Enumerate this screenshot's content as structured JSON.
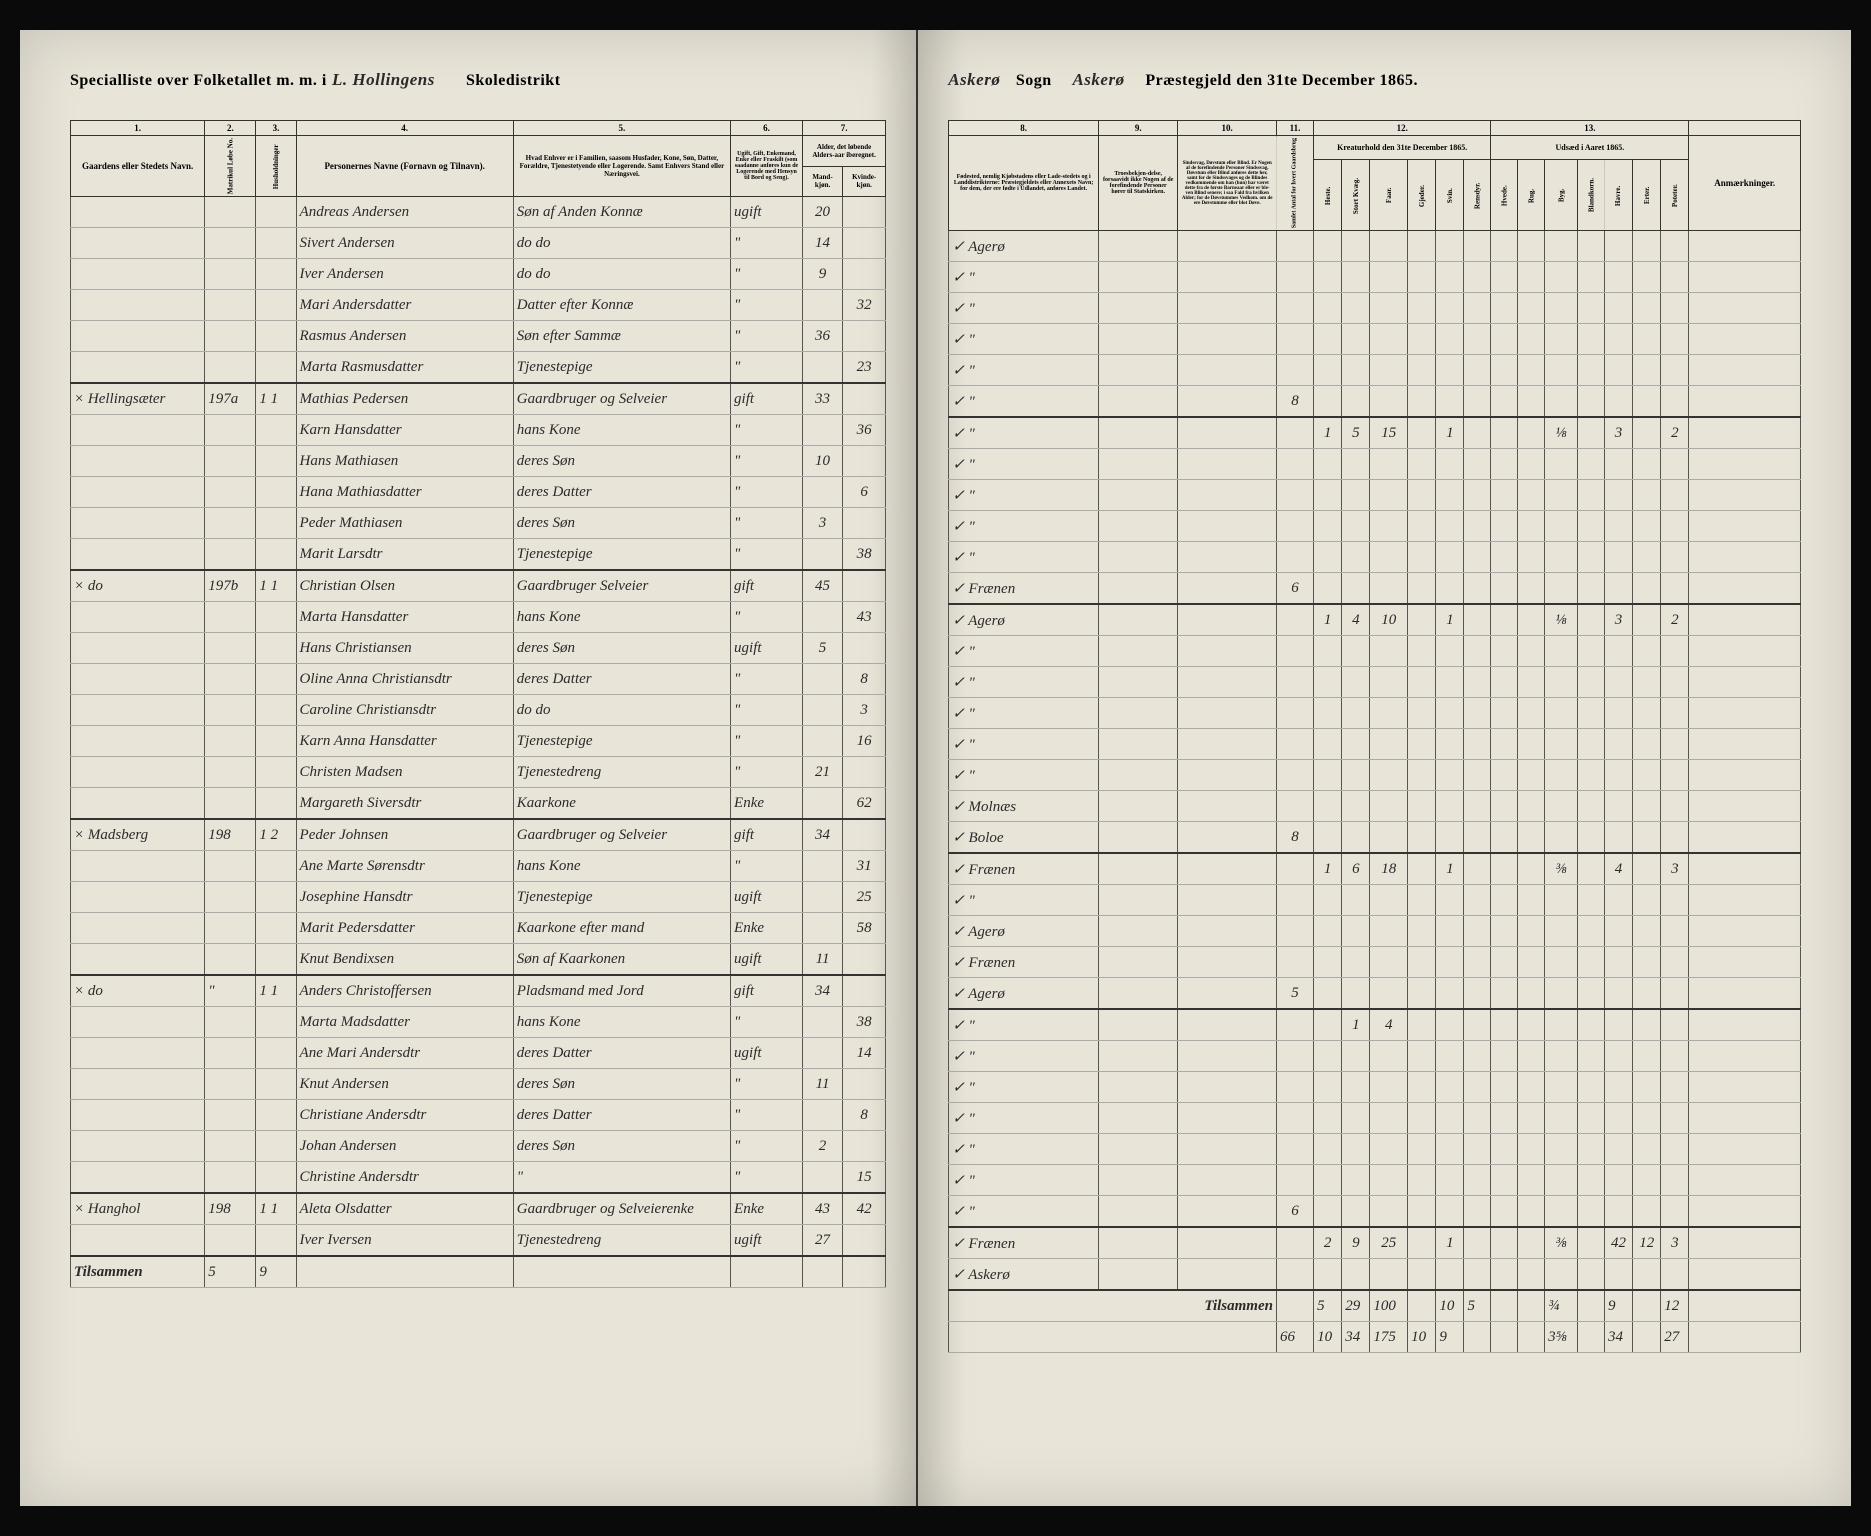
{
  "header": {
    "left_prefix": "Specialliste over Folketallet m. m. i",
    "district": "L. Hollingens",
    "left_suffix": "Skoledistrikt",
    "sogn_label": "Sogn",
    "sogn": "Askerø",
    "parish": "Askerø",
    "right_suffix": "Præstegjeld den 31te December 1865."
  },
  "column_numbers": [
    "1.",
    "2.",
    "3.",
    "4.",
    "5.",
    "6.",
    "7.",
    "8.",
    "9.",
    "10.",
    "11.",
    "12.",
    "13."
  ],
  "left_headers": {
    "col1": "Gaardens eller Stedets\nNavn.",
    "col2a": "Matrikul Løbe No.",
    "col2b": "Husholdninger",
    "col4": "Personernes Navne (Fornavn og Tilnavn).",
    "col5": "Hvad Enhver er i Familien, saasom Husfader, Kone, Søn, Datter, Forældre, Tjenestetyende eller Logerende.\nSamt\nEnhvers Stand eller Næringsvei.",
    "col6": "Ugift, Gift, Enkemand, Enke eller Fraskilt (som saadanne anføres kun de Logerende med Hensyn til Bord og Seng).",
    "col7": "Alder, det løbende Alders-aar iberegnet.",
    "col7a": "Mand-kjøn.",
    "col7b": "Kvinde-kjøn."
  },
  "right_headers": {
    "col8": "Fødested,\nnemlig Kjøbstadens eller Lade-stedets og i Landdistrikterne: Præstegjeldets eller Annexets Navn; for dem, der ere fødte i Udlandet, anføres Landet.",
    "col9": "Troesbekjen-delse, forsaavidt ikke Nogen af de forefindende Personer hører til Statskirken.",
    "col10": "Sindssvag, Døvstum eller Blind. Er Nogen af de forefindende Personer Sindssvag, Døvstum eller Blind anføres dette her, samt for de Sindssvages og de Blindes vedkommende om han (hun) har været dette fra de første Barneaar eller er ble-ven Blind senere; i saa Fald fra hvilken Alder; for de Døvstummes Vedkom. om de ere Døvstumme eller blot Døve.",
    "col11": "Samlet Antal for hvert Gaardsbrug",
    "col12_top": "Kreaturhold\nden 31te December 1865.",
    "col12_heste": "Heste.",
    "col12_stort": "Stort Kvæg.",
    "col12_faar": "Faar.",
    "col12_gjeder": "Gjeder.",
    "col12_svin": "Svin.",
    "col12_rens": "Rensdyr.",
    "col13_top": "Udsæd i\nAaret 1865.",
    "col13_hvede": "Hvede.",
    "col13_rug": "Rug.",
    "col13_byg": "Byg.",
    "col13_bland": "Blandkorn.",
    "col13_havre": "Havre.",
    "col13_erter": "Erter.",
    "col13_pot": "Poteter.",
    "anm": "Anmærkninger."
  },
  "rows": [
    {
      "gaard": "",
      "mnr": "",
      "hh": "",
      "name": "Andreas Andersen",
      "pos": "Søn af Anden Konnæ",
      "stat": "ugift",
      "m": "20",
      "k": "",
      "birth": "Agerø",
      "note": "",
      "c11": "",
      "h": "",
      "sk": "",
      "f": "",
      "g": "",
      "sv": "",
      "hv": "",
      "ru": "",
      "by": "",
      "bl": "",
      "ha": "",
      "er": "",
      "po": ""
    },
    {
      "gaard": "",
      "mnr": "",
      "hh": "",
      "name": "Sivert Andersen",
      "pos": "do   do",
      "stat": "\"",
      "m": "14",
      "k": "",
      "birth": "\"",
      "note": "",
      "c11": "",
      "h": "",
      "sk": "",
      "f": "",
      "g": "",
      "sv": "",
      "hv": "",
      "ru": "",
      "by": "",
      "bl": "",
      "ha": "",
      "er": "",
      "po": ""
    },
    {
      "gaard": "",
      "mnr": "",
      "hh": "",
      "name": "Iver Andersen",
      "pos": "do   do",
      "stat": "\"",
      "m": "9",
      "k": "",
      "birth": "\"",
      "note": "",
      "c11": "",
      "h": "",
      "sk": "",
      "f": "",
      "g": "",
      "sv": "",
      "hv": "",
      "ru": "",
      "by": "",
      "bl": "",
      "ha": "",
      "er": "",
      "po": ""
    },
    {
      "gaard": "",
      "mnr": "",
      "hh": "",
      "name": "Mari Andersdatter",
      "pos": "Datter efter Konnæ",
      "stat": "\"",
      "m": "",
      "k": "32",
      "birth": "\"",
      "note": "",
      "c11": "",
      "h": "",
      "sk": "",
      "f": "",
      "g": "",
      "sv": "",
      "hv": "",
      "ru": "",
      "by": "",
      "bl": "",
      "ha": "",
      "er": "",
      "po": ""
    },
    {
      "gaard": "",
      "mnr": "",
      "hh": "",
      "name": "Rasmus Andersen",
      "pos": "Søn efter Sammæ",
      "stat": "\"",
      "m": "36",
      "k": "",
      "birth": "\"",
      "note": "",
      "c11": "",
      "h": "",
      "sk": "",
      "f": "",
      "g": "",
      "sv": "",
      "hv": "",
      "ru": "",
      "by": "",
      "bl": "",
      "ha": "",
      "er": "",
      "po": ""
    },
    {
      "gaard": "",
      "mnr": "",
      "hh": "",
      "name": "Marta Rasmusdatter",
      "pos": "Tjenestepige",
      "stat": "\"",
      "m": "",
      "k": "23",
      "birth": "\"",
      "note": "",
      "c11": "8",
      "h": "",
      "sk": "",
      "f": "",
      "g": "",
      "sv": "",
      "hv": "",
      "ru": "",
      "by": "",
      "bl": "",
      "ha": "",
      "er": "",
      "po": ""
    },
    {
      "gaard": "× Hellingsæter",
      "mnr": "197a",
      "hh": "1 1",
      "name": "Mathias Pedersen",
      "pos": "Gaardbruger og Selveier",
      "stat": "gift",
      "m": "33",
      "k": "",
      "birth": "\"",
      "note": "",
      "c11": "",
      "h": "1",
      "sk": "5",
      "f": "15",
      "g": "",
      "sv": "1",
      "hv": "",
      "ru": "",
      "by": "⅛",
      "bl": "",
      "ha": "3",
      "er": "",
      "po": "2"
    },
    {
      "gaard": "",
      "mnr": "",
      "hh": "",
      "name": "Karn Hansdatter",
      "pos": "hans Kone",
      "stat": "\"",
      "m": "",
      "k": "36",
      "birth": "\"",
      "note": "",
      "c11": "",
      "h": "",
      "sk": "",
      "f": "",
      "g": "",
      "sv": "",
      "hv": "",
      "ru": "",
      "by": "",
      "bl": "",
      "ha": "",
      "er": "",
      "po": ""
    },
    {
      "gaard": "",
      "mnr": "",
      "hh": "",
      "name": "Hans Mathiasen",
      "pos": "deres Søn",
      "stat": "\"",
      "m": "10",
      "k": "",
      "birth": "\"",
      "note": "",
      "c11": "",
      "h": "",
      "sk": "",
      "f": "",
      "g": "",
      "sv": "",
      "hv": "",
      "ru": "",
      "by": "",
      "bl": "",
      "ha": "",
      "er": "",
      "po": ""
    },
    {
      "gaard": "",
      "mnr": "",
      "hh": "",
      "name": "Hana Mathiasdatter",
      "pos": "deres Datter",
      "stat": "\"",
      "m": "",
      "k": "6",
      "birth": "\"",
      "note": "",
      "c11": "",
      "h": "",
      "sk": "",
      "f": "",
      "g": "",
      "sv": "",
      "hv": "",
      "ru": "",
      "by": "",
      "bl": "",
      "ha": "",
      "er": "",
      "po": ""
    },
    {
      "gaard": "",
      "mnr": "",
      "hh": "",
      "name": "Peder Mathiasen",
      "pos": "deres Søn",
      "stat": "\"",
      "m": "3",
      "k": "",
      "birth": "\"",
      "note": "",
      "c11": "",
      "h": "",
      "sk": "",
      "f": "",
      "g": "",
      "sv": "",
      "hv": "",
      "ru": "",
      "by": "",
      "bl": "",
      "ha": "",
      "er": "",
      "po": ""
    },
    {
      "gaard": "",
      "mnr": "",
      "hh": "",
      "name": "Marit Larsdtr",
      "pos": "Tjenestepige",
      "stat": "\"",
      "m": "",
      "k": "38",
      "birth": "Frænen",
      "note": "",
      "c11": "6",
      "h": "",
      "sk": "",
      "f": "",
      "g": "",
      "sv": "",
      "hv": "",
      "ru": "",
      "by": "",
      "bl": "",
      "ha": "",
      "er": "",
      "po": ""
    },
    {
      "gaard": "× do",
      "mnr": "197b",
      "hh": "1 1",
      "name": "Christian Olsen",
      "pos": "Gaardbruger Selveier",
      "stat": "gift",
      "m": "45",
      "k": "",
      "birth": "Agerø",
      "note": "",
      "c11": "",
      "h": "1",
      "sk": "4",
      "f": "10",
      "g": "",
      "sv": "1",
      "hv": "",
      "ru": "",
      "by": "⅛",
      "bl": "",
      "ha": "3",
      "er": "",
      "po": "2"
    },
    {
      "gaard": "",
      "mnr": "",
      "hh": "",
      "name": "Marta Hansdatter",
      "pos": "hans Kone",
      "stat": "\"",
      "m": "",
      "k": "43",
      "birth": "\"",
      "note": "",
      "c11": "",
      "h": "",
      "sk": "",
      "f": "",
      "g": "",
      "sv": "",
      "hv": "",
      "ru": "",
      "by": "",
      "bl": "",
      "ha": "",
      "er": "",
      "po": ""
    },
    {
      "gaard": "",
      "mnr": "",
      "hh": "",
      "name": "Hans Christiansen",
      "pos": "deres Søn",
      "stat": "ugift",
      "m": "5",
      "k": "",
      "birth": "\"",
      "note": "",
      "c11": "",
      "h": "",
      "sk": "",
      "f": "",
      "g": "",
      "sv": "",
      "hv": "",
      "ru": "",
      "by": "",
      "bl": "",
      "ha": "",
      "er": "",
      "po": ""
    },
    {
      "gaard": "",
      "mnr": "",
      "hh": "",
      "name": "Oline Anna Christiansdtr",
      "pos": "deres Datter",
      "stat": "\"",
      "m": "",
      "k": "8",
      "birth": "\"",
      "note": "",
      "c11": "",
      "h": "",
      "sk": "",
      "f": "",
      "g": "",
      "sv": "",
      "hv": "",
      "ru": "",
      "by": "",
      "bl": "",
      "ha": "",
      "er": "",
      "po": ""
    },
    {
      "gaard": "",
      "mnr": "",
      "hh": "",
      "name": "Caroline Christiansdtr",
      "pos": "do   do",
      "stat": "\"",
      "m": "",
      "k": "3",
      "birth": "\"",
      "note": "",
      "c11": "",
      "h": "",
      "sk": "",
      "f": "",
      "g": "",
      "sv": "",
      "hv": "",
      "ru": "",
      "by": "",
      "bl": "",
      "ha": "",
      "er": "",
      "po": ""
    },
    {
      "gaard": "",
      "mnr": "",
      "hh": "",
      "name": "Karn Anna Hansdatter",
      "pos": "Tjenestepige",
      "stat": "\"",
      "m": "",
      "k": "16",
      "birth": "\"",
      "note": "",
      "c11": "",
      "h": "",
      "sk": "",
      "f": "",
      "g": "",
      "sv": "",
      "hv": "",
      "ru": "",
      "by": "",
      "bl": "",
      "ha": "",
      "er": "",
      "po": ""
    },
    {
      "gaard": "",
      "mnr": "",
      "hh": "",
      "name": "Christen Madsen",
      "pos": "Tjenestedreng",
      "stat": "\"",
      "m": "21",
      "k": "",
      "birth": "Molnæs",
      "note": "",
      "c11": "",
      "h": "",
      "sk": "",
      "f": "",
      "g": "",
      "sv": "",
      "hv": "",
      "ru": "",
      "by": "",
      "bl": "",
      "ha": "",
      "er": "",
      "po": ""
    },
    {
      "gaard": "",
      "mnr": "",
      "hh": "",
      "name": "Margareth Siversdtr",
      "pos": "Kaarkone",
      "stat": "Enke",
      "m": "",
      "k": "62",
      "birth": "Boloe",
      "note": "",
      "c11": "8",
      "h": "",
      "sk": "",
      "f": "",
      "g": "",
      "sv": "",
      "hv": "",
      "ru": "",
      "by": "",
      "bl": "",
      "ha": "",
      "er": "",
      "po": ""
    },
    {
      "gaard": "× Madsberg",
      "mnr": "198",
      "hh": "1 2",
      "name": "Peder Johnsen",
      "pos": "Gaardbruger og Selveier",
      "stat": "gift",
      "m": "34",
      "k": "",
      "birth": "Frænen",
      "note": "",
      "c11": "",
      "h": "1",
      "sk": "6",
      "f": "18",
      "g": "",
      "sv": "1",
      "hv": "",
      "ru": "",
      "by": "⅜",
      "bl": "",
      "ha": "4",
      "er": "",
      "po": "3"
    },
    {
      "gaard": "",
      "mnr": "",
      "hh": "",
      "name": "Ane Marte Sørensdtr",
      "pos": "hans Kone",
      "stat": "\"",
      "m": "",
      "k": "31",
      "birth": "\"",
      "note": "",
      "c11": "",
      "h": "",
      "sk": "",
      "f": "",
      "g": "",
      "sv": "",
      "hv": "",
      "ru": "",
      "by": "",
      "bl": "",
      "ha": "",
      "er": "",
      "po": ""
    },
    {
      "gaard": "",
      "mnr": "",
      "hh": "",
      "name": "Josephine Hansdtr",
      "pos": "Tjenestepige",
      "stat": "ugift",
      "m": "",
      "k": "25",
      "birth": "Agerø",
      "note": "",
      "c11": "",
      "h": "",
      "sk": "",
      "f": "",
      "g": "",
      "sv": "",
      "hv": "",
      "ru": "",
      "by": "",
      "bl": "",
      "ha": "",
      "er": "",
      "po": ""
    },
    {
      "gaard": "",
      "mnr": "",
      "hh": "",
      "name": "Marit Pedersdatter",
      "pos": "Kaarkone efter mand",
      "stat": "Enke",
      "m": "",
      "k": "58",
      "birth": "Frænen",
      "note": "",
      "c11": "",
      "h": "",
      "sk": "",
      "f": "",
      "g": "",
      "sv": "",
      "hv": "",
      "ru": "",
      "by": "",
      "bl": "",
      "ha": "",
      "er": "",
      "po": ""
    },
    {
      "gaard": "",
      "mnr": "",
      "hh": "",
      "name": "Knut Bendixsen",
      "pos": "Søn af Kaarkonen",
      "stat": "ugift",
      "m": "11",
      "k": "",
      "birth": "Agerø",
      "note": "",
      "c11": "5",
      "h": "",
      "sk": "",
      "f": "",
      "g": "",
      "sv": "",
      "hv": "",
      "ru": "",
      "by": "",
      "bl": "",
      "ha": "",
      "er": "",
      "po": ""
    },
    {
      "gaard": "× do",
      "mnr": "\"",
      "hh": "1 1",
      "name": "Anders Christoffersen",
      "pos": "Pladsmand med Jord",
      "stat": "gift",
      "m": "34",
      "k": "",
      "birth": "\"",
      "note": "",
      "c11": "",
      "h": "",
      "sk": "1",
      "f": "4",
      "g": "",
      "sv": "",
      "hv": "",
      "ru": "",
      "by": "",
      "bl": "",
      "ha": "",
      "er": "",
      "po": ""
    },
    {
      "gaard": "",
      "mnr": "",
      "hh": "",
      "name": "Marta Madsdatter",
      "pos": "hans Kone",
      "stat": "\"",
      "m": "",
      "k": "38",
      "birth": "\"",
      "note": "",
      "c11": "",
      "h": "",
      "sk": "",
      "f": "",
      "g": "",
      "sv": "",
      "hv": "",
      "ru": "",
      "by": "",
      "bl": "",
      "ha": "",
      "er": "",
      "po": ""
    },
    {
      "gaard": "",
      "mnr": "",
      "hh": "",
      "name": "Ane Mari Andersdtr",
      "pos": "deres Datter",
      "stat": "ugift",
      "m": "",
      "k": "14",
      "birth": "\"",
      "note": "",
      "c11": "",
      "h": "",
      "sk": "",
      "f": "",
      "g": "",
      "sv": "",
      "hv": "",
      "ru": "",
      "by": "",
      "bl": "",
      "ha": "",
      "er": "",
      "po": ""
    },
    {
      "gaard": "",
      "mnr": "",
      "hh": "",
      "name": "Knut Andersen",
      "pos": "deres Søn",
      "stat": "\"",
      "m": "11",
      "k": "",
      "birth": "\"",
      "note": "",
      "c11": "",
      "h": "",
      "sk": "",
      "f": "",
      "g": "",
      "sv": "",
      "hv": "",
      "ru": "",
      "by": "",
      "bl": "",
      "ha": "",
      "er": "",
      "po": ""
    },
    {
      "gaard": "",
      "mnr": "",
      "hh": "",
      "name": "Christiane Andersdtr",
      "pos": "deres Datter",
      "stat": "\"",
      "m": "",
      "k": "8",
      "birth": "\"",
      "note": "",
      "c11": "",
      "h": "",
      "sk": "",
      "f": "",
      "g": "",
      "sv": "",
      "hv": "",
      "ru": "",
      "by": "",
      "bl": "",
      "ha": "",
      "er": "",
      "po": ""
    },
    {
      "gaard": "",
      "mnr": "",
      "hh": "",
      "name": "Johan Andersen",
      "pos": "deres Søn",
      "stat": "\"",
      "m": "2",
      "k": "",
      "birth": "\"",
      "note": "",
      "c11": "",
      "h": "",
      "sk": "",
      "f": "",
      "g": "",
      "sv": "",
      "hv": "",
      "ru": "",
      "by": "",
      "bl": "",
      "ha": "",
      "er": "",
      "po": ""
    },
    {
      "gaard": "",
      "mnr": "",
      "hh": "",
      "name": "Christine Andersdtr",
      "pos": "\"",
      "stat": "\"",
      "m": "",
      "k": "15",
      "birth": "\"",
      "note": "",
      "c11": "6",
      "h": "",
      "sk": "",
      "f": "",
      "g": "",
      "sv": "",
      "hv": "",
      "ru": "",
      "by": "",
      "bl": "",
      "ha": "",
      "er": "",
      "po": ""
    },
    {
      "gaard": "× Hanghol",
      "mnr": "198",
      "hh": "1 1",
      "name": "Aleta Olsdatter",
      "pos": "Gaardbruger og Selveierenke",
      "stat": "Enke",
      "m": "43",
      "k": "42",
      "birth": "Frænen",
      "note": "",
      "c11": "",
      "h": "2",
      "sk": "9",
      "f": "25",
      "g": "",
      "sv": "1",
      "hv": "",
      "ru": "",
      "by": "⅜",
      "bl": "",
      "ha": "42",
      "er": "12",
      "po": "3"
    },
    {
      "gaard": "",
      "mnr": "",
      "hh": "",
      "name": "Iver Iversen",
      "pos": "Tjenestedreng",
      "stat": "ugift",
      "m": "27",
      "k": "",
      "birth": "Askerø",
      "note": "",
      "c11": "",
      "h": "",
      "sk": "",
      "f": "",
      "g": "",
      "sv": "",
      "hv": "",
      "ru": "",
      "by": "",
      "bl": "",
      "ha": "",
      "er": "",
      "po": ""
    }
  ],
  "totals": {
    "label_left": "Tilsammen",
    "label_right": "Tilsammen",
    "hh1": "5",
    "hh2": "9",
    "sub_h": "5",
    "sub_sk": "29",
    "sub_f": "100",
    "sub_sv": "10",
    "sub_pot": "5",
    "sub_by": "¾",
    "sub_ha": "9",
    "sub_po": "12",
    "tot_c11": "66",
    "tot_h": "10",
    "tot_sk": "34",
    "tot_f": "175",
    "tot_g": "10",
    "tot_sv": "9",
    "tot_by": "3⅝",
    "tot_ha": "34",
    "tot_po": "27"
  }
}
